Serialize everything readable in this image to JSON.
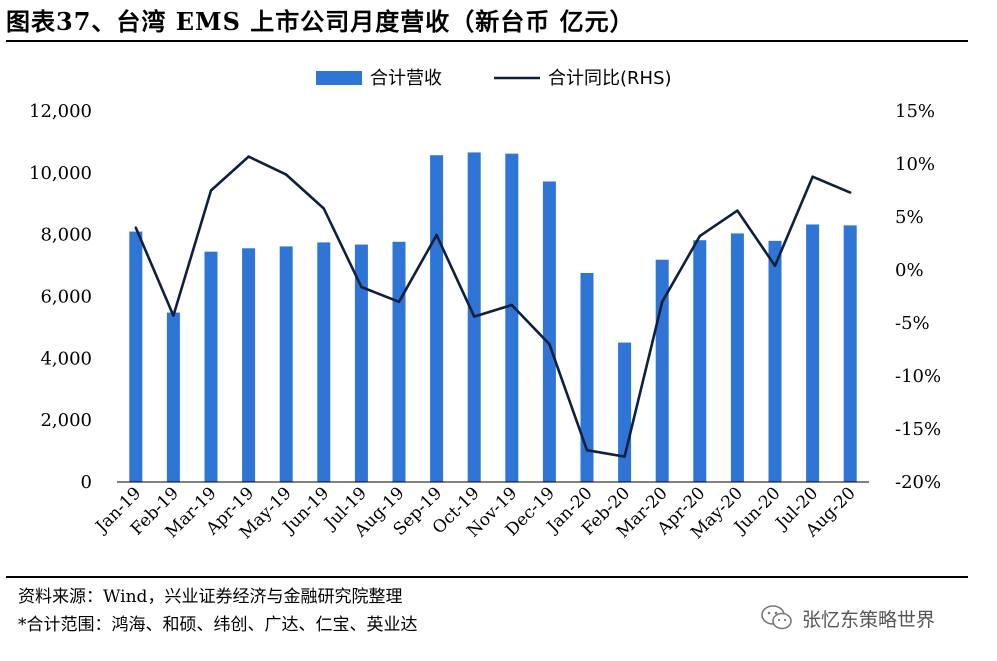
{
  "title": "图表37、台湾 EMS 上市公司月度营收（新台币  亿元）",
  "source_note": "资料来源：Wind，兴业证券经济与金融研究院整理",
  "scope_note": "*合计范围：鸿海、和硕、纬创、广达、仁宝、英业达",
  "watermark": {
    "text": "张忆东策略世界",
    "icon": "wechat-icon"
  },
  "chart_data": {
    "type": "bar",
    "categories": [
      "Jan-19",
      "Feb-19",
      "Mar-19",
      "Apr-19",
      "May-19",
      "Jun-19",
      "Jul-19",
      "Aug-19",
      "Sep-19",
      "Oct-19",
      "Nov-19",
      "Dec-19",
      "Jan-20",
      "Feb-20",
      "Mar-20",
      "Apr-20",
      "May-20",
      "Jun-20",
      "Jul-20",
      "Aug-20"
    ],
    "series": [
      {
        "name": "合计营收",
        "type": "bar",
        "axis": "left",
        "color": "#2e75d6",
        "values": [
          8100,
          5480,
          7450,
          7560,
          7620,
          7750,
          7680,
          7770,
          10570,
          10660,
          10620,
          9720,
          6760,
          4510,
          7190,
          7820,
          8040,
          7800,
          8330,
          8300
        ]
      },
      {
        "name": "合计同比(RHS)",
        "type": "line",
        "axis": "right",
        "color": "#0f1f3d",
        "values": [
          4.0,
          -4.3,
          7.5,
          10.7,
          9.0,
          5.8,
          -1.6,
          -3.0,
          3.3,
          -4.4,
          -3.3,
          -7.0,
          -17.0,
          -17.6,
          -3.0,
          3.2,
          5.6,
          0.4,
          8.8,
          7.3
        ]
      }
    ],
    "y_left": {
      "min": 0,
      "max": 12000,
      "ticks": [
        "0",
        "2,000",
        "4,000",
        "6,000",
        "8,000",
        "10,000",
        "12,000"
      ]
    },
    "y_right": {
      "min": -20,
      "max": 15,
      "ticks": [
        "-20%",
        "-15%",
        "-10%",
        "-5%",
        "0%",
        "5%",
        "10%",
        "15%"
      ]
    },
    "legend_position": "top-center",
    "grid": false
  }
}
